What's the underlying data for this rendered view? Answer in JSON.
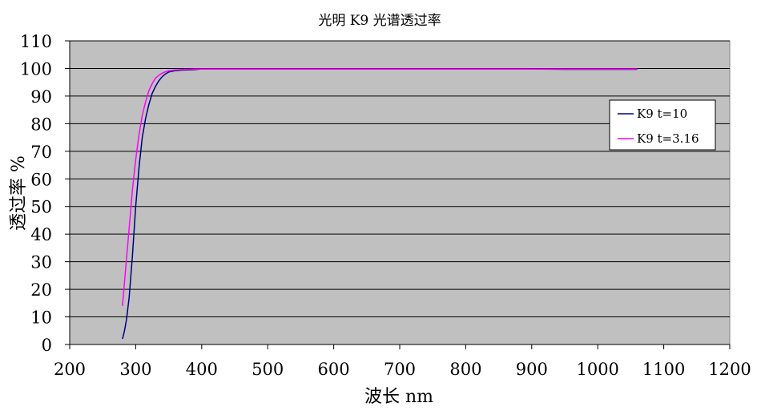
{
  "chart_data": {
    "type": "line",
    "title": "光明 K9 光谱透过率",
    "xlabel": "波长 nm",
    "ylabel": "透过率 %",
    "xlim": [
      200,
      1200
    ],
    "ylim": [
      0,
      110
    ],
    "x_ticks": [
      200,
      300,
      400,
      500,
      600,
      700,
      800,
      900,
      1000,
      1100,
      1200
    ],
    "y_ticks": [
      0,
      10,
      20,
      30,
      40,
      50,
      60,
      70,
      80,
      90,
      100,
      110
    ],
    "grid": {
      "horizontal": true,
      "vertical": false
    },
    "legend_position": "right",
    "plot_background": "#c0c0c0",
    "series": [
      {
        "name": "K9  t=10",
        "color": "#000080",
        "x": [
          280,
          283,
          286,
          290,
          295,
          300,
          305,
          310,
          315,
          320,
          325,
          330,
          335,
          340,
          345,
          350,
          360,
          370,
          380,
          390,
          400,
          450,
          500,
          550,
          600,
          650,
          700,
          750,
          800,
          850,
          900,
          950,
          1000,
          1060
        ],
        "y": [
          2,
          5,
          9,
          17,
          32,
          50,
          64,
          75,
          82,
          87,
          91,
          93.5,
          95.5,
          97,
          98,
          98.7,
          99.2,
          99.4,
          99.5,
          99.6,
          99.8,
          99.8,
          99.8,
          99.8,
          99.8,
          99.8,
          99.8,
          99.8,
          99.8,
          99.8,
          99.8,
          99.7,
          99.7,
          99.7
        ]
      },
      {
        "name": "K9  t=3.16",
        "color": "#ff00ff",
        "x": [
          280,
          285,
          290,
          295,
          300,
          305,
          310,
          315,
          320,
          325,
          330,
          335,
          340,
          345,
          350,
          360,
          370,
          380,
          390,
          400,
          450,
          500,
          550,
          600,
          650,
          700,
          750,
          800,
          850,
          900,
          950,
          1000,
          1060
        ],
        "y": [
          14,
          28,
          42,
          56,
          67,
          76,
          83,
          88,
          92,
          94.5,
          96.5,
          97.5,
          98.3,
          98.8,
          99.2,
          99.5,
          99.6,
          99.7,
          99.8,
          99.8,
          99.8,
          99.8,
          99.8,
          99.8,
          99.8,
          99.8,
          99.8,
          99.8,
          99.8,
          99.8,
          99.8,
          99.8,
          99.8
        ]
      }
    ]
  }
}
